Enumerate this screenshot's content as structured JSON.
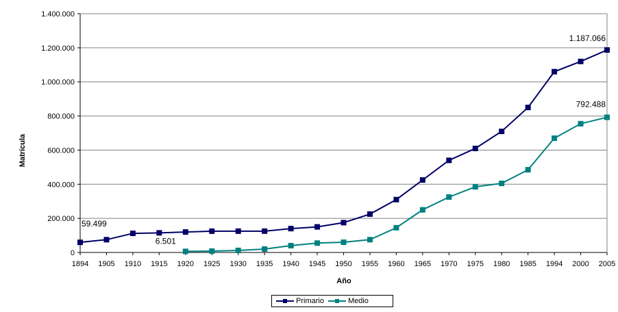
{
  "chart_data": {
    "type": "line",
    "title": "",
    "xlabel": "Año",
    "ylabel": "Matrícula",
    "ylim": [
      0,
      1400000
    ],
    "yticks": [
      "0",
      "200.000",
      "400.000",
      "600.000",
      "800.000",
      "1.000.000",
      "1.200.000",
      "1.400.000"
    ],
    "categories": [
      "1894",
      "1905",
      "1910",
      "1915",
      "1920",
      "1925",
      "1930",
      "1935",
      "1940",
      "1945",
      "1950",
      "1955",
      "1960",
      "1965",
      "1970",
      "1975",
      "1980",
      "1985",
      "1994",
      "2000",
      "2005"
    ],
    "series": [
      {
        "name": "Primario",
        "color": "#000066",
        "values": [
          59499,
          75000,
          112000,
          115000,
          120000,
          125000,
          125000,
          125000,
          140000,
          150000,
          175000,
          225000,
          310000,
          425000,
          540000,
          610000,
          710000,
          850000,
          1060000,
          1120000,
          1187066
        ]
      },
      {
        "name": "Medio",
        "color": "#008080",
        "values": [
          null,
          null,
          null,
          null,
          6501,
          8000,
          12000,
          20000,
          40000,
          55000,
          60000,
          75000,
          145000,
          250000,
          325000,
          385000,
          405000,
          485000,
          670000,
          755000,
          792488
        ]
      }
    ],
    "annotations": [
      {
        "text": "59.499",
        "series": 0,
        "index": 0
      },
      {
        "text": "6.501",
        "series": 1,
        "index": 4
      },
      {
        "text": "1.187.066",
        "series": 0,
        "index": 20
      },
      {
        "text": "792.488",
        "series": 1,
        "index": 20
      }
    ],
    "legend": {
      "placement": "bottom",
      "items": [
        "Primario",
        "Medio"
      ]
    },
    "grid": true
  }
}
